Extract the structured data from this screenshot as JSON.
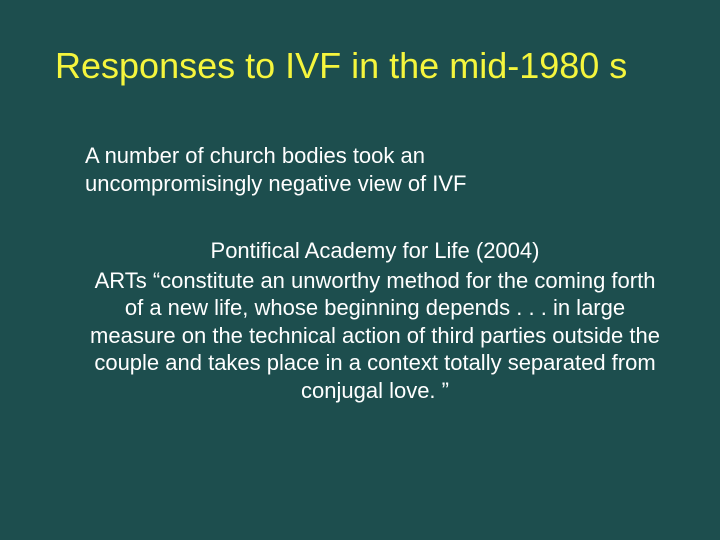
{
  "slide": {
    "background_color": "#1d4e4e",
    "title_color": "#f5f53d",
    "body_color": "#ffffff",
    "title_fontsize": 36,
    "body_fontsize": 22,
    "font_family": "Arial",
    "title": "Responses to IVF in the mid-1980 s",
    "intro": "A number of church bodies took an uncompromisingly negative view of IVF",
    "source": "Pontifical Academy for Life (2004)",
    "quote": "ARTs “constitute an unworthy method for the coming forth of a new life, whose beginning depends . . . in large measure on the technical action of third parties outside the couple and takes place in a context totally separated from conjugal love. ”"
  }
}
